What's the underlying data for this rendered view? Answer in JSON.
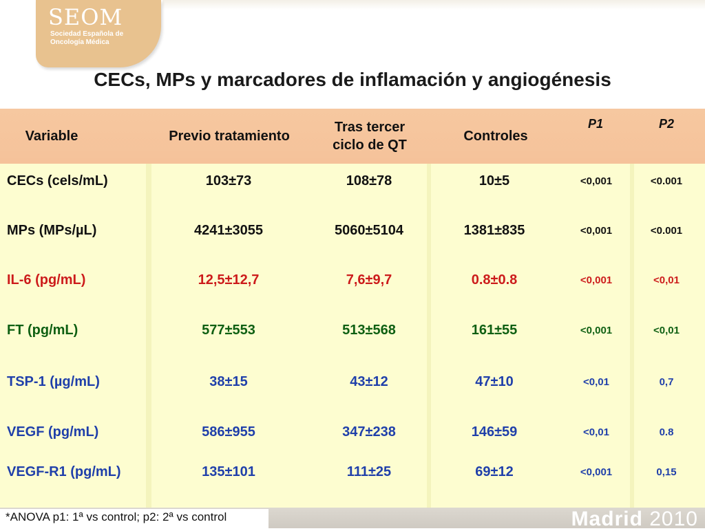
{
  "logo": {
    "main": "SEOM",
    "sub": "Sociedad Española de Oncología Médica"
  },
  "title": "CECs, MPs y marcadores de inflamación y angiogénesis",
  "table": {
    "headers": {
      "variable": "Variable",
      "previo": "Previo tratamiento",
      "tras": "Tras tercer ciclo de QT",
      "controles": "Controles",
      "p1": "P1",
      "p2": "P2"
    },
    "rows": [
      {
        "name": "CECs (cels/mL)",
        "previo": "103±73",
        "tras": "108±78",
        "controles": "10±5",
        "p1": "<0,001",
        "p2": "<0.001",
        "color": "#111111"
      },
      {
        "name": "MPs (MPs/µL)",
        "previo": "4241±3055",
        "tras": "5060±5104",
        "controles": "1381±835",
        "p1": "<0,001",
        "p2": "<0.001",
        "color": "#111111"
      },
      {
        "name": "IL-6 (pg/mL)",
        "previo": "12,5±12,7",
        "tras": "7,6±9,7",
        "controles": "0.8±0.8",
        "p1": "<0,001",
        "p2": "<0,01",
        "color": "#cc1b1b"
      },
      {
        "name": "FT (pg/mL)",
        "previo": "577±553",
        "tras": "513±568",
        "controles": "161±55",
        "p1": "<0,001",
        "p2": "<0,01",
        "color": "#0e5f12"
      },
      {
        "name": "TSP-1 (µg/mL)",
        "previo": "38±15",
        "tras": "43±12",
        "controles": "47±10",
        "p1": "<0,01",
        "p2": "0,7",
        "color": "#1f3faa"
      },
      {
        "name": "VEGF (pg/mL)",
        "previo": "586±955",
        "tras": "347±238",
        "controles": "146±59",
        "p1": "<0,01",
        "p2": "0.8",
        "color": "#1f3faa"
      },
      {
        "name": "VEGF-R1 (pg/mL)",
        "previo": "135±101",
        "tras": "111±25",
        "controles": "69±12",
        "p1": "<0,001",
        "p2": "0,15",
        "color": "#1f3faa"
      }
    ]
  },
  "footnote": "*ANOVA p1: 1ª vs control; p2: 2ª vs control",
  "madrid": {
    "city": "Madrid",
    "year": "2010"
  }
}
